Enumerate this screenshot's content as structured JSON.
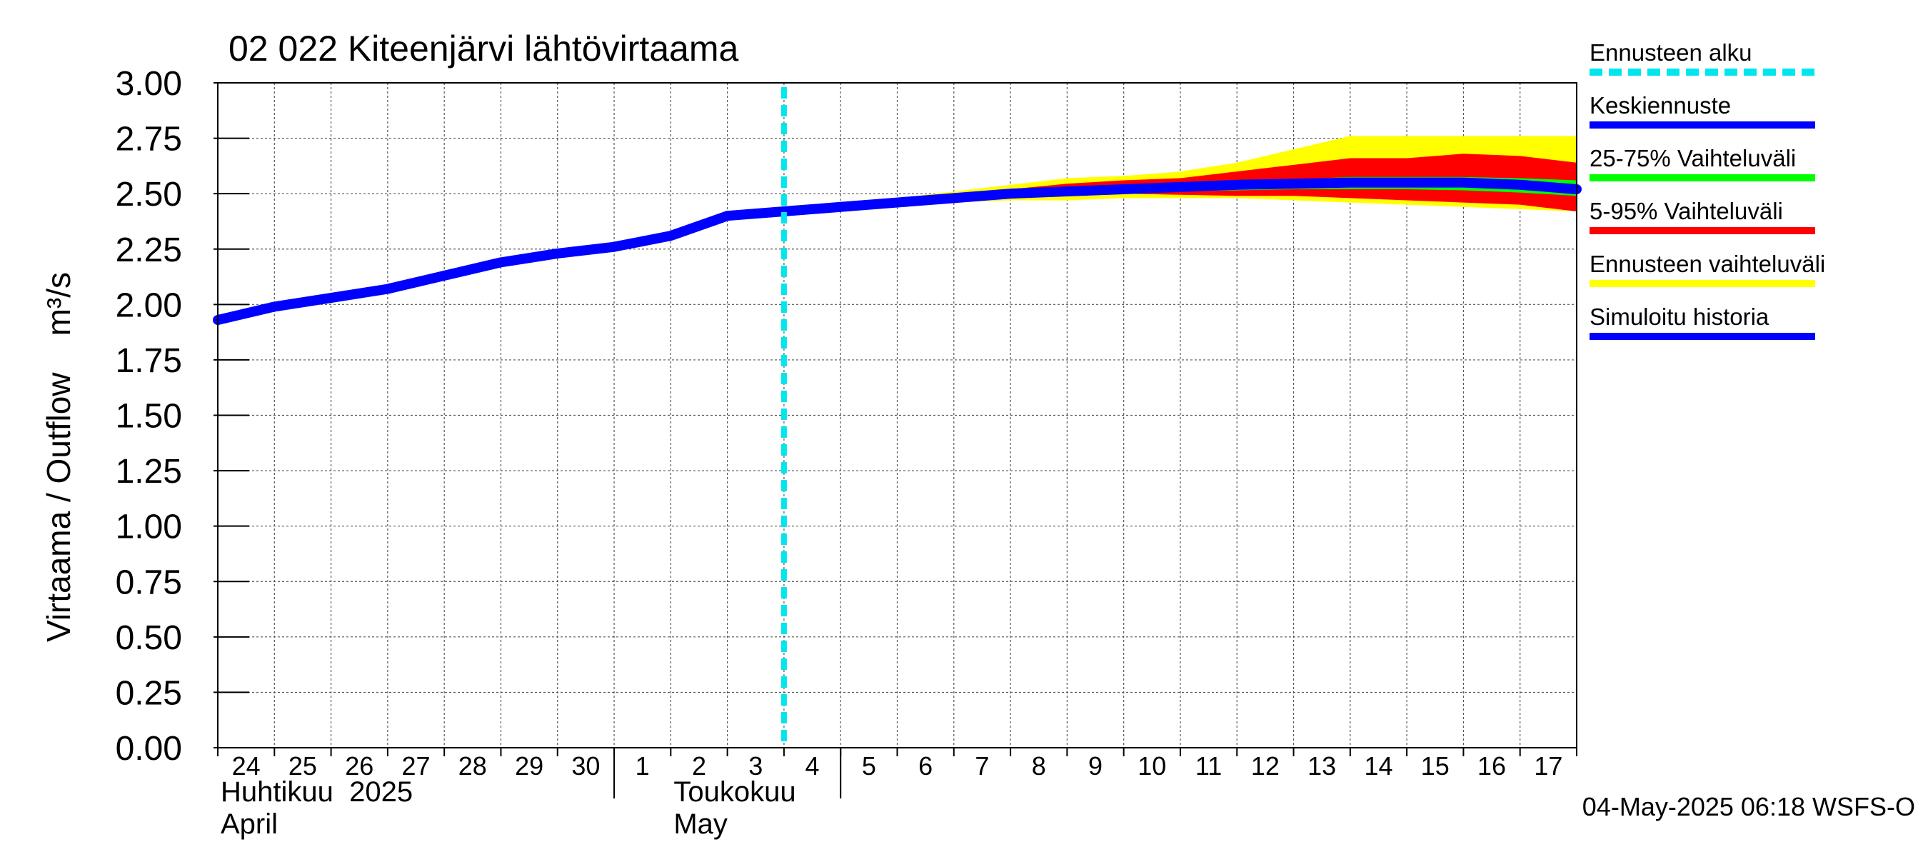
{
  "chart_data": {
    "type": "line",
    "title": "02 022 Kiteenjärvi lähtövirtaama",
    "ylabel": "Virtaama / Outflow    m³/s",
    "ylim": [
      0,
      3
    ],
    "y_ticks": [
      "0.00",
      "0.25",
      "0.50",
      "0.75",
      "1.00",
      "1.25",
      "1.50",
      "1.75",
      "2.00",
      "2.25",
      "2.50",
      "2.75",
      "3.00"
    ],
    "y_tick_values": [
      0,
      0.25,
      0.5,
      0.75,
      1,
      1.25,
      1.5,
      1.75,
      2,
      2.25,
      2.5,
      2.75,
      3
    ],
    "xlim": [
      0,
      24
    ],
    "x_ticks": [
      {
        "day": 0.5,
        "label": "24"
      },
      {
        "day": 1.5,
        "label": "25"
      },
      {
        "day": 2.5,
        "label": "26"
      },
      {
        "day": 3.5,
        "label": "27"
      },
      {
        "day": 4.5,
        "label": "28"
      },
      {
        "day": 5.5,
        "label": "29"
      },
      {
        "day": 6.5,
        "label": "30"
      },
      {
        "day": 7.5,
        "label": "1"
      },
      {
        "day": 8.5,
        "label": "2"
      },
      {
        "day": 9.5,
        "label": "3"
      },
      {
        "day": 10.5,
        "label": "4"
      },
      {
        "day": 11.5,
        "label": "5"
      },
      {
        "day": 12.5,
        "label": "6"
      },
      {
        "day": 13.5,
        "label": "7"
      },
      {
        "day": 14.5,
        "label": "8"
      },
      {
        "day": 15.5,
        "label": "9"
      },
      {
        "day": 16.5,
        "label": "10"
      },
      {
        "day": 17.5,
        "label": "11"
      },
      {
        "day": 18.5,
        "label": "12"
      },
      {
        "day": 19.5,
        "label": "13"
      },
      {
        "day": 20.5,
        "label": "14"
      },
      {
        "day": 21.5,
        "label": "15"
      },
      {
        "day": 22.5,
        "label": "16"
      },
      {
        "day": 23.5,
        "label": "17"
      }
    ],
    "month_separators": [
      7,
      11
    ],
    "month_labels": [
      {
        "day": 0,
        "fi": "Huhtikuu  2025",
        "en": "April"
      },
      {
        "day": 8,
        "fi": "Toukokuu",
        "en": "May"
      }
    ],
    "forecast_start": 10,
    "series": [
      {
        "name": "Simuloitu historia",
        "color": "#0000ff",
        "x": [
          0,
          1,
          2,
          3,
          4,
          5,
          6,
          7,
          8,
          9,
          10
        ],
        "y": [
          1.93,
          1.99,
          2.03,
          2.07,
          2.13,
          2.19,
          2.23,
          2.26,
          2.31,
          2.4,
          2.42
        ]
      },
      {
        "name": "Keskiennuste",
        "color": "#0000ff",
        "x": [
          10,
          11,
          12,
          13,
          14,
          15,
          16,
          17,
          18,
          19,
          20,
          21,
          22,
          23,
          24
        ],
        "y": [
          2.42,
          2.44,
          2.46,
          2.48,
          2.5,
          2.51,
          2.52,
          2.53,
          2.54,
          2.545,
          2.55,
          2.55,
          2.55,
          2.54,
          2.52
        ]
      }
    ],
    "bands": [
      {
        "name": "Ennusteen vaihteluväli",
        "color": "#ffff00",
        "x": [
          10,
          11,
          12,
          13,
          14,
          15,
          16,
          17,
          18,
          19,
          20,
          21,
          22,
          23,
          24
        ],
        "upper": [
          2.42,
          2.45,
          2.48,
          2.51,
          2.54,
          2.57,
          2.58,
          2.6,
          2.64,
          2.7,
          2.76,
          2.76,
          2.76,
          2.76,
          2.76
        ],
        "lower": [
          2.42,
          2.43,
          2.45,
          2.46,
          2.47,
          2.47,
          2.48,
          2.48,
          2.48,
          2.47,
          2.46,
          2.45,
          2.44,
          2.43,
          2.42
        ]
      },
      {
        "name": "5-95% Vaihteluväli",
        "color": "#ff0000",
        "x": [
          10,
          11,
          12,
          13,
          14,
          15,
          16,
          17,
          18,
          19,
          20,
          21,
          22,
          23,
          24
        ],
        "upper": [
          2.42,
          2.445,
          2.47,
          2.495,
          2.52,
          2.545,
          2.56,
          2.57,
          2.6,
          2.63,
          2.66,
          2.66,
          2.68,
          2.67,
          2.64
        ],
        "lower": [
          2.42,
          2.435,
          2.455,
          2.47,
          2.485,
          2.49,
          2.5,
          2.495,
          2.49,
          2.49,
          2.48,
          2.47,
          2.46,
          2.45,
          2.42
        ]
      },
      {
        "name": "25-75% Vaihteluväli",
        "color": "#00ff00",
        "x": [
          10,
          11,
          12,
          13,
          14,
          15,
          16,
          17,
          18,
          19,
          20,
          21,
          22,
          23,
          24
        ],
        "upper": [
          2.42,
          2.442,
          2.465,
          2.487,
          2.51,
          2.525,
          2.535,
          2.545,
          2.555,
          2.565,
          2.575,
          2.575,
          2.575,
          2.57,
          2.56
        ],
        "lower": [
          2.42,
          2.438,
          2.455,
          2.473,
          2.49,
          2.5,
          2.505,
          2.51,
          2.515,
          2.52,
          2.52,
          2.52,
          2.515,
          2.505,
          2.49
        ]
      }
    ],
    "legend": [
      {
        "label": "Ennusteen alku",
        "color": "#00e5ee",
        "style": "dashed"
      },
      {
        "label": "Keskiennuste",
        "color": "#0000ff",
        "style": "solid"
      },
      {
        "label": "25-75% Vaihteluväli",
        "color": "#00ff00",
        "style": "solid"
      },
      {
        "label": "5-95% Vaihteluväli",
        "color": "#ff0000",
        "style": "solid"
      },
      {
        "label": "Ennusteen vaihteluväli",
        "color": "#ffff00",
        "style": "solid"
      },
      {
        "label": "Simuloitu historia",
        "color": "#0000ff",
        "style": "solid"
      }
    ],
    "legend_position": "right",
    "footer": "04-May-2025 06:18 WSFS-O"
  }
}
